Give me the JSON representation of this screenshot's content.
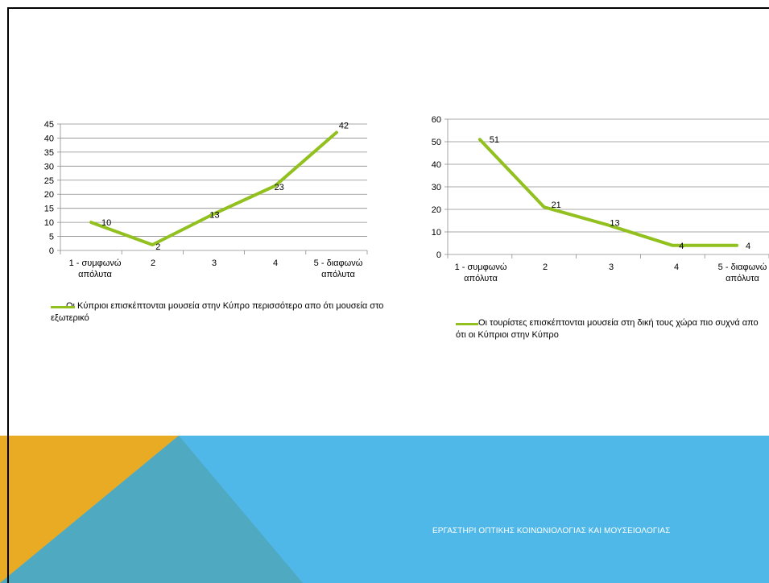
{
  "slide": {
    "footer": "ΕΡΓΑΣΤΗΡΙ ΟΠΤΙΚΗΣ ΚΟΙΝΩΝΙΟΛΟΓΙΑΣ ΚΑΙ ΜΟΥΣΕΙΟΛΟΓΙΑΣ",
    "colors": {
      "series": "#92c01f",
      "band_blue": "#50b8e9",
      "triangle_orange": "#e9ab24",
      "triangle_teal": "#4ea9c1",
      "footer_text": "#ffffff"
    }
  },
  "chart_data": [
    {
      "type": "line",
      "categories": [
        "1 - συμφωνώ απόλυτα",
        "2",
        "3",
        "4",
        "5 - διαφωνώ απόλυτα"
      ],
      "series": [
        {
          "name": "Οι Κύπριοι επισκέπτονται μουσεία στην Κύπρο περισσότερο απο ότι μουσεία στο εξωτερικό",
          "values": [
            10,
            2,
            13,
            23,
            42
          ],
          "color": "#92c01f"
        }
      ],
      "data_labels": [
        "10",
        "2",
        "13",
        "23",
        "42"
      ],
      "title": "",
      "xlabel": "",
      "ylabel": "",
      "ylim": [
        0,
        45
      ],
      "yticks": [
        0,
        5,
        10,
        15,
        20,
        25,
        30,
        35,
        40,
        45
      ],
      "ytick_labels": [
        "0",
        "5",
        "10",
        "15",
        "20",
        "25",
        "30",
        "35",
        "40",
        "45"
      ],
      "grid": true,
      "legend": "bottom"
    },
    {
      "type": "line",
      "categories": [
        "1 - συμφωνώ απόλυτα",
        "2",
        "3",
        "4",
        "5 - διαφωνώ απόλυτα"
      ],
      "series": [
        {
          "name": "Οι τουρίστες επισκέπτονται μουσεία στη δική τους χώρα πιο συχνά απο ότι οι Κύπριοι στην Κύπρο",
          "values": [
            51,
            21,
            13,
            4,
            4
          ],
          "color": "#92c01f"
        }
      ],
      "data_labels": [
        "51",
        "21",
        "13",
        "4",
        "4"
      ],
      "title": "",
      "xlabel": "",
      "ylabel": "",
      "ylim": [
        0,
        60
      ],
      "yticks": [
        0,
        10,
        20,
        30,
        40,
        50,
        60
      ],
      "ytick_labels": [
        "0",
        "10",
        "20",
        "30",
        "40",
        "50",
        "60"
      ],
      "grid": true,
      "legend": "bottom"
    }
  ]
}
